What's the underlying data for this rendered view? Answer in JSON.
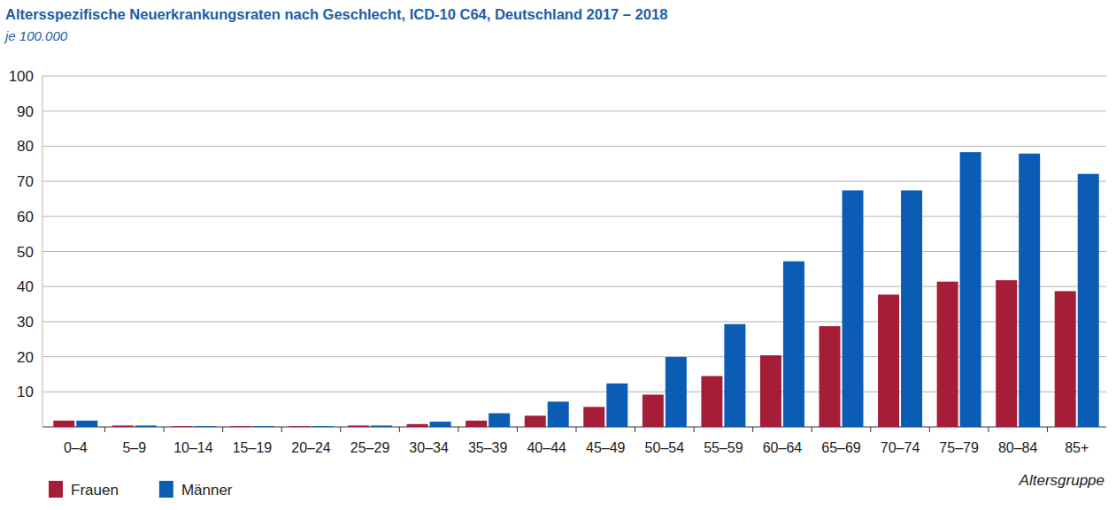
{
  "chart_data": {
    "type": "bar",
    "title": "Altersspezifische Neuerkrankungsraten nach Geschlecht, ICD-10 C64, Deutschland 2017 – 2018",
    "subtitle": "je 100.000",
    "x_label": "Altersgruppe",
    "categories": [
      "0–4",
      "5–9",
      "10–14",
      "15–19",
      "20–24",
      "25–29",
      "30–34",
      "35–39",
      "40–44",
      "45–49",
      "50–54",
      "55–59",
      "60–64",
      "65–69",
      "70–74",
      "75–79",
      "80–84",
      "85+"
    ],
    "series": [
      {
        "name": "Frauen",
        "color": "#a51d36",
        "values": [
          1.8,
          0.4,
          0.2,
          0.2,
          0.2,
          0.4,
          0.8,
          1.8,
          3.2,
          5.7,
          9.2,
          14.5,
          20.4,
          28.7,
          37.7,
          41.4,
          41.8,
          38.7
        ]
      },
      {
        "name": "Männer",
        "color": "#0b5cb5",
        "values": [
          1.8,
          0.4,
          0.2,
          0.2,
          0.2,
          0.4,
          1.5,
          3.9,
          7.2,
          12.4,
          19.9,
          29.3,
          47.2,
          67.4,
          67.4,
          78.3,
          77.9,
          72.1
        ]
      }
    ],
    "ylim": [
      0,
      100
    ],
    "yticks": [
      10,
      20,
      30,
      40,
      50,
      60,
      70,
      80,
      90,
      100
    ],
    "grid": true,
    "legend": "bottom-left"
  }
}
